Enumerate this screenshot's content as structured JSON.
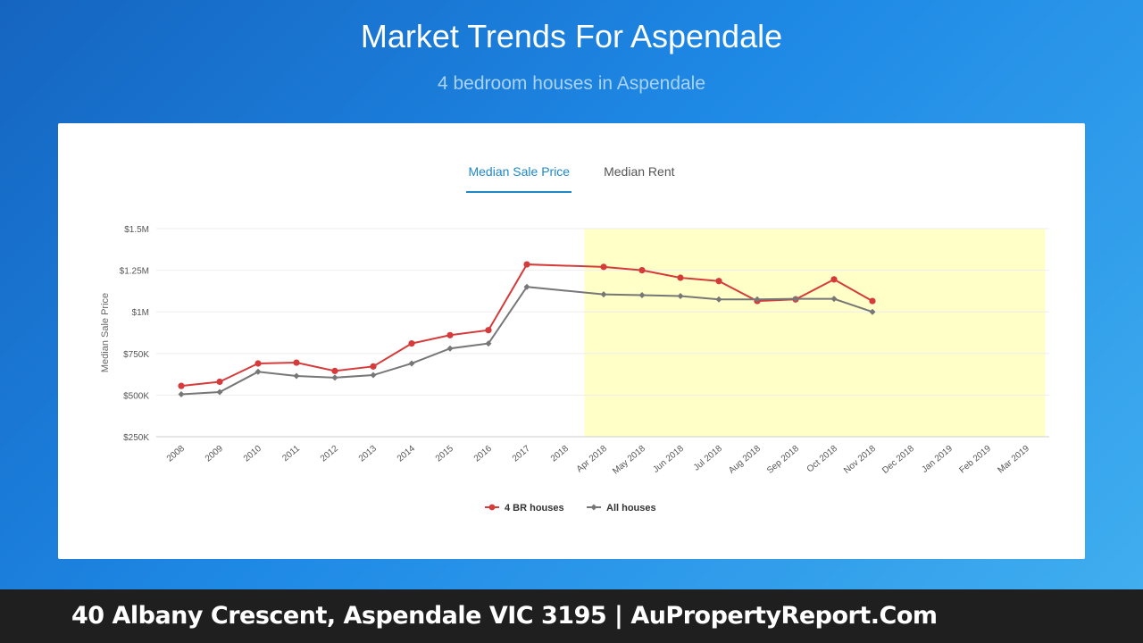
{
  "header": {
    "title": "Market Trends For Aspendale",
    "subtitle": "4 bedroom houses in Aspendale"
  },
  "tabs": [
    {
      "label": "Median Sale Price",
      "active": true
    },
    {
      "label": "Median Rent",
      "active": false
    }
  ],
  "footer": {
    "text": "40 Albany Crescent, Aspendale VIC 3195 | AuPropertyReport.Com"
  },
  "colors": {
    "series_4br": "#d63b3b",
    "series_all": "#777777",
    "highlight": "#ffffc8",
    "tab_active": "#1e88c8"
  },
  "chart_data": {
    "type": "line",
    "ylabel": "Median Sale Price",
    "ylim": [
      250000,
      1500000
    ],
    "y_ticks": [
      {
        "value": 250000,
        "label": "$250K"
      },
      {
        "value": 500000,
        "label": "$500K"
      },
      {
        "value": 750000,
        "label": "$750K"
      },
      {
        "value": 1000000,
        "label": "$1M"
      },
      {
        "value": 1250000,
        "label": "$1.25M"
      },
      {
        "value": 1500000,
        "label": "$1.5M"
      }
    ],
    "categories": [
      "2008",
      "2009",
      "2010",
      "2011",
      "2012",
      "2013",
      "2014",
      "2015",
      "2016",
      "2017",
      "2018",
      "Apr 2018",
      "May 2018",
      "Jun 2018",
      "Jul 2018",
      "Aug 2018",
      "Sep 2018",
      "Oct 2018",
      "Nov 2018",
      "Dec 2018",
      "Jan 2019",
      "Feb 2019",
      "Mar 2019"
    ],
    "highlight_range": [
      "2018",
      "Mar 2019"
    ],
    "legend_position": "bottom",
    "grid": true,
    "series": [
      {
        "name": "4 BR houses",
        "color": "#d63b3b",
        "marker": "circle",
        "values": [
          555000,
          580000,
          690000,
          695000,
          645000,
          672000,
          810000,
          860000,
          890000,
          1285000,
          null,
          1270000,
          1250000,
          1205000,
          1185000,
          1065000,
          1075000,
          1195000,
          1065000,
          null,
          null,
          null,
          null
        ]
      },
      {
        "name": "All houses",
        "color": "#777777",
        "marker": "diamond",
        "values": [
          505000,
          518000,
          640000,
          615000,
          605000,
          620000,
          690000,
          780000,
          810000,
          1150000,
          null,
          1105000,
          1100000,
          1095000,
          1075000,
          1075000,
          1078000,
          1078000,
          1000000,
          null,
          null,
          null,
          null
        ]
      }
    ]
  }
}
